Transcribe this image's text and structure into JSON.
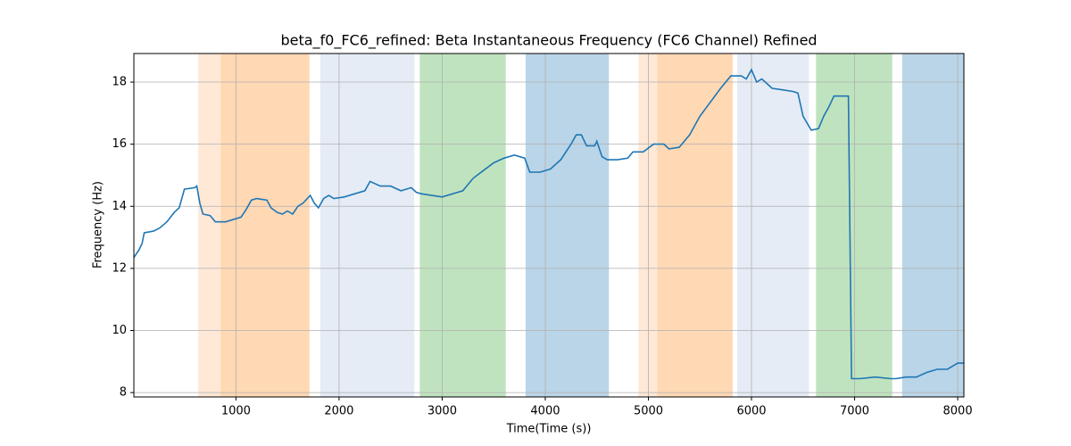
{
  "chart_data": {
    "type": "line",
    "title": "beta_f0_FC6_refined: Beta Instantaneous Frequency (FC6 Channel) Refined",
    "x_label": "Time(Time (s))",
    "y_label": "Frequency (Hz)",
    "xlim": [
      10,
      8060
    ],
    "ylim": [
      7.86,
      18.92
    ],
    "xticks": [
      1000,
      2000,
      3000,
      4000,
      5000,
      6000,
      7000,
      8000
    ],
    "yticks": [
      8,
      10,
      12,
      14,
      16,
      18
    ],
    "grid": true,
    "spans": [
      {
        "start": 635,
        "end": 852,
        "color": "#ffe8d6"
      },
      {
        "start": 852,
        "end": 1713,
        "color": "#ffd8b4"
      },
      {
        "start": 1817,
        "end": 2730,
        "color": "#e5ecf6"
      },
      {
        "start": 2783,
        "end": 3617,
        "color": "#c0e3bf"
      },
      {
        "start": 3809,
        "end": 4617,
        "color": "#bad5e8"
      },
      {
        "start": 4904,
        "end": 5087,
        "color": "#ffe8d6"
      },
      {
        "start": 5087,
        "end": 5817,
        "color": "#ffd8b4"
      },
      {
        "start": 5861,
        "end": 6557,
        "color": "#e5ecf6"
      },
      {
        "start": 6626,
        "end": 7365,
        "color": "#c0e3bf"
      },
      {
        "start": 7461,
        "end": 8060,
        "color": "#bad5e8"
      }
    ],
    "series": [
      {
        "color": "#1f77b4",
        "x": [
          10,
          60,
          90,
          110,
          200,
          260,
          330,
          400,
          450,
          500,
          600,
          620,
          650,
          680,
          750,
          800,
          900,
          1000,
          1050,
          1100,
          1150,
          1200,
          1300,
          1340,
          1400,
          1450,
          1500,
          1550,
          1600,
          1650,
          1720,
          1760,
          1800,
          1850,
          1900,
          1950,
          2050,
          2150,
          2250,
          2300,
          2400,
          2500,
          2600,
          2700,
          2750,
          2800,
          2900,
          3000,
          3100,
          3200,
          3300,
          3400,
          3500,
          3600,
          3700,
          3800,
          3850,
          3950,
          4050,
          4150,
          4250,
          4300,
          4350,
          4400,
          4480,
          4500,
          4550,
          4600,
          4700,
          4800,
          4850,
          4950,
          5050,
          5150,
          5200,
          5300,
          5400,
          5500,
          5600,
          5700,
          5800,
          5900,
          5950,
          6000,
          6050,
          6100,
          6200,
          6300,
          6400,
          6450,
          6500,
          6580,
          6650,
          6700,
          6750,
          6800,
          6900,
          6940,
          6970,
          7050,
          7200,
          7350,
          7400,
          7500,
          7600,
          7700,
          7800,
          7900,
          8000,
          8060
        ],
        "values": [
          12.35,
          12.6,
          12.8,
          13.15,
          13.2,
          13.3,
          13.5,
          13.8,
          13.95,
          14.55,
          14.6,
          14.65,
          14.1,
          13.75,
          13.7,
          13.5,
          13.5,
          13.6,
          13.65,
          13.9,
          14.2,
          14.25,
          14.2,
          13.95,
          13.8,
          13.75,
          13.85,
          13.75,
          14.0,
          14.1,
          14.35,
          14.1,
          13.95,
          14.25,
          14.35,
          14.25,
          14.3,
          14.4,
          14.5,
          14.8,
          14.65,
          14.65,
          14.5,
          14.6,
          14.45,
          14.4,
          14.35,
          14.3,
          14.4,
          14.5,
          14.9,
          15.15,
          15.4,
          15.55,
          15.65,
          15.55,
          15.1,
          15.1,
          15.2,
          15.5,
          16.0,
          16.3,
          16.3,
          15.95,
          15.95,
          16.1,
          15.6,
          15.5,
          15.5,
          15.55,
          15.75,
          15.75,
          16.0,
          16.0,
          15.85,
          15.9,
          16.3,
          16.9,
          17.35,
          17.8,
          18.2,
          18.2,
          18.1,
          18.4,
          18.0,
          18.1,
          17.8,
          17.75,
          17.7,
          17.65,
          16.9,
          16.45,
          16.5,
          16.9,
          17.2,
          17.55,
          17.55,
          17.55,
          8.45,
          8.45,
          8.5,
          8.45,
          8.45,
          8.5,
          8.5,
          8.65,
          8.75,
          8.75,
          8.95,
          8.95
        ]
      }
    ]
  }
}
